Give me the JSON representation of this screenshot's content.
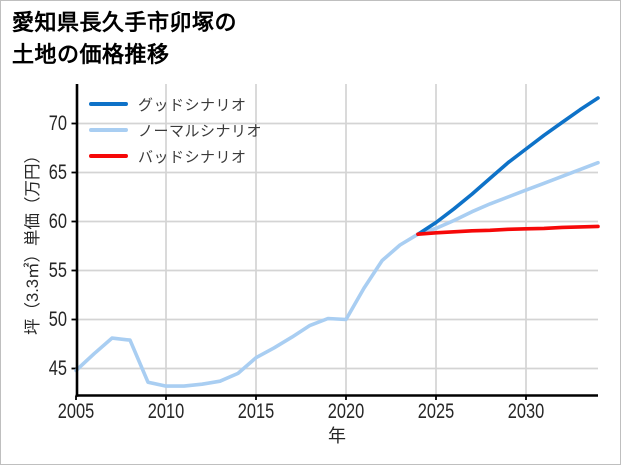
{
  "frame": {
    "background": "#ffffff",
    "border_color": "#bfbfbf"
  },
  "title": {
    "line1": "愛知県長久手市卯塚の",
    "line2": "土地の価格推移"
  },
  "axes": {
    "xlabel": "年",
    "ylabel": "坪（3.3㎡）単価（万円）"
  },
  "chart_data": {
    "type": "line",
    "title": "愛知県長久手市卯塚の土地の価格推移",
    "xlabel": "年",
    "ylabel": "坪（3.3㎡）単価（万円）",
    "xlim": [
      2005,
      2034
    ],
    "ylim": [
      42.2,
      74.2
    ],
    "xticks": [
      2005,
      2010,
      2015,
      2020,
      2025,
      2030
    ],
    "yticks": [
      45,
      50,
      55,
      60,
      65,
      70
    ],
    "grid": true,
    "grid_color": "#d4d4d4",
    "axis_color": "#000000",
    "tick_label_color": "#262626",
    "legend_position": "upper-left-inside",
    "series": [
      {
        "name": "グッドシナリオ",
        "color": "#0e72c8",
        "x": [
          2024,
          2025,
          2026,
          2027,
          2028,
          2029,
          2030,
          2031,
          2032,
          2033,
          2034
        ],
        "values": [
          58.7,
          59.9,
          61.3,
          62.8,
          64.4,
          66.0,
          67.4,
          68.8,
          70.1,
          71.4,
          72.6
        ]
      },
      {
        "name": "ノーマルシナリオ",
        "color": "#a9cef2",
        "x": [
          2005,
          2006,
          2007,
          2008,
          2009,
          2010,
          2011,
          2012,
          2013,
          2014,
          2015,
          2016,
          2017,
          2018,
          2019,
          2020,
          2021,
          2022,
          2023,
          2024,
          2025,
          2026,
          2027,
          2028,
          2029,
          2030,
          2031,
          2032,
          2033,
          2034
        ],
        "values": [
          44.8,
          46.5,
          48.1,
          47.9,
          43.6,
          43.2,
          43.2,
          43.4,
          43.7,
          44.5,
          46.1,
          47.1,
          48.2,
          49.4,
          50.1,
          50.0,
          53.2,
          56.0,
          57.6,
          58.7,
          59.3,
          60.1,
          61.0,
          61.8,
          62.5,
          63.2,
          63.9,
          64.6,
          65.3,
          66.0
        ]
      },
      {
        "name": "バッドシナリオ",
        "color": "#f60808",
        "x": [
          2024,
          2025,
          2026,
          2027,
          2028,
          2029,
          2030,
          2031,
          2032,
          2033,
          2034
        ],
        "values": [
          58.7,
          58.85,
          58.95,
          59.05,
          59.1,
          59.2,
          59.25,
          59.3,
          59.4,
          59.45,
          59.5
        ]
      }
    ]
  }
}
